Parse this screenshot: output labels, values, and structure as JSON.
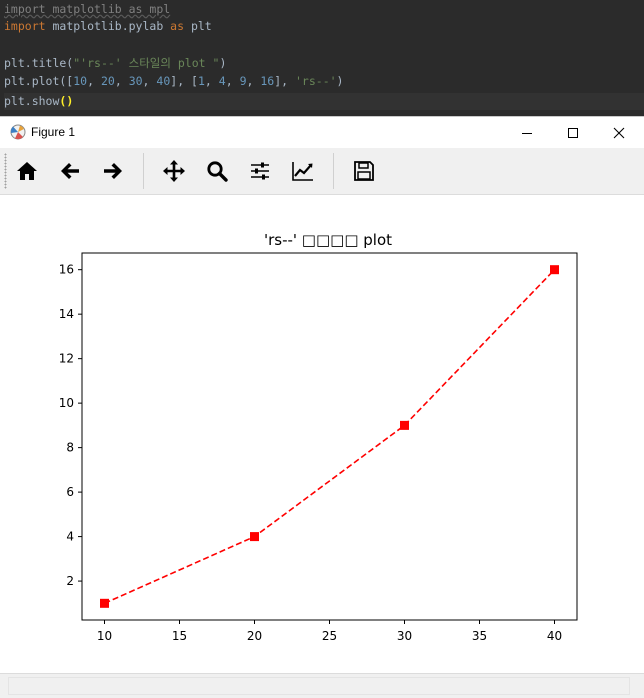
{
  "editor": {
    "lines": [
      {
        "segments": [
          {
            "t": "import matplotlib as mpl",
            "c": "tok-dim"
          }
        ]
      },
      {
        "segments": [
          {
            "t": "import",
            "c": "tok-kw"
          },
          {
            "t": " matplotlib.pylab ",
            "c": ""
          },
          {
            "t": "as",
            "c": "tok-kw"
          },
          {
            "t": " plt",
            "c": ""
          }
        ]
      },
      {
        "segments": [
          {
            "t": "",
            "c": ""
          }
        ]
      },
      {
        "segments": [
          {
            "t": "plt.title(",
            "c": ""
          },
          {
            "t": "\"'rs--' 스타일의 plot \"",
            "c": "tok-str"
          },
          {
            "t": ")",
            "c": ""
          }
        ]
      },
      {
        "segments": [
          {
            "t": "plt.plot([",
            "c": ""
          },
          {
            "t": "10",
            "c": "tok-num"
          },
          {
            "t": ", ",
            "c": ""
          },
          {
            "t": "20",
            "c": "tok-num"
          },
          {
            "t": ", ",
            "c": ""
          },
          {
            "t": "30",
            "c": "tok-num"
          },
          {
            "t": ", ",
            "c": ""
          },
          {
            "t": "40",
            "c": "tok-num"
          },
          {
            "t": "], [",
            "c": ""
          },
          {
            "t": "1",
            "c": "tok-num"
          },
          {
            "t": ", ",
            "c": ""
          },
          {
            "t": "4",
            "c": "tok-num"
          },
          {
            "t": ", ",
            "c": ""
          },
          {
            "t": "9",
            "c": "tok-num"
          },
          {
            "t": ", ",
            "c": ""
          },
          {
            "t": "16",
            "c": "tok-num"
          },
          {
            "t": "], ",
            "c": ""
          },
          {
            "t": "'rs--'",
            "c": "tok-str"
          },
          {
            "t": ")",
            "c": ""
          }
        ]
      },
      {
        "segments": [
          {
            "t": "plt.show",
            "c": ""
          },
          {
            "t": "()",
            "c": "tok-paren"
          }
        ]
      }
    ]
  },
  "window": {
    "title": "Figure 1",
    "icon": "matplotlib-icon"
  },
  "toolbar": {
    "tools": [
      {
        "name": "home",
        "icon": "home-icon"
      },
      {
        "name": "back",
        "icon": "arrow-left-icon"
      },
      {
        "name": "forward",
        "icon": "arrow-right-icon"
      },
      {
        "name": "pan",
        "icon": "move-icon"
      },
      {
        "name": "zoom",
        "icon": "magnifier-icon"
      },
      {
        "name": "subplots",
        "icon": "sliders-icon"
      },
      {
        "name": "edit",
        "icon": "line-chart-icon"
      },
      {
        "name": "save",
        "icon": "floppy-icon"
      }
    ]
  },
  "chart_data": {
    "type": "line",
    "title": "'rs--' □□□□ plot",
    "x": [
      10,
      20,
      30,
      40
    ],
    "series": [
      {
        "values": [
          1,
          4,
          9,
          16
        ],
        "color": "#ff0000",
        "marker": "square",
        "linestyle": "dashed"
      }
    ],
    "xlim": [
      8.5,
      41.5
    ],
    "ylim": [
      0.25,
      16.75
    ],
    "xticks": [
      10,
      15,
      20,
      25,
      30,
      35,
      40
    ],
    "yticks": [
      2,
      4,
      6,
      8,
      10,
      12,
      14,
      16
    ],
    "grid": false
  }
}
